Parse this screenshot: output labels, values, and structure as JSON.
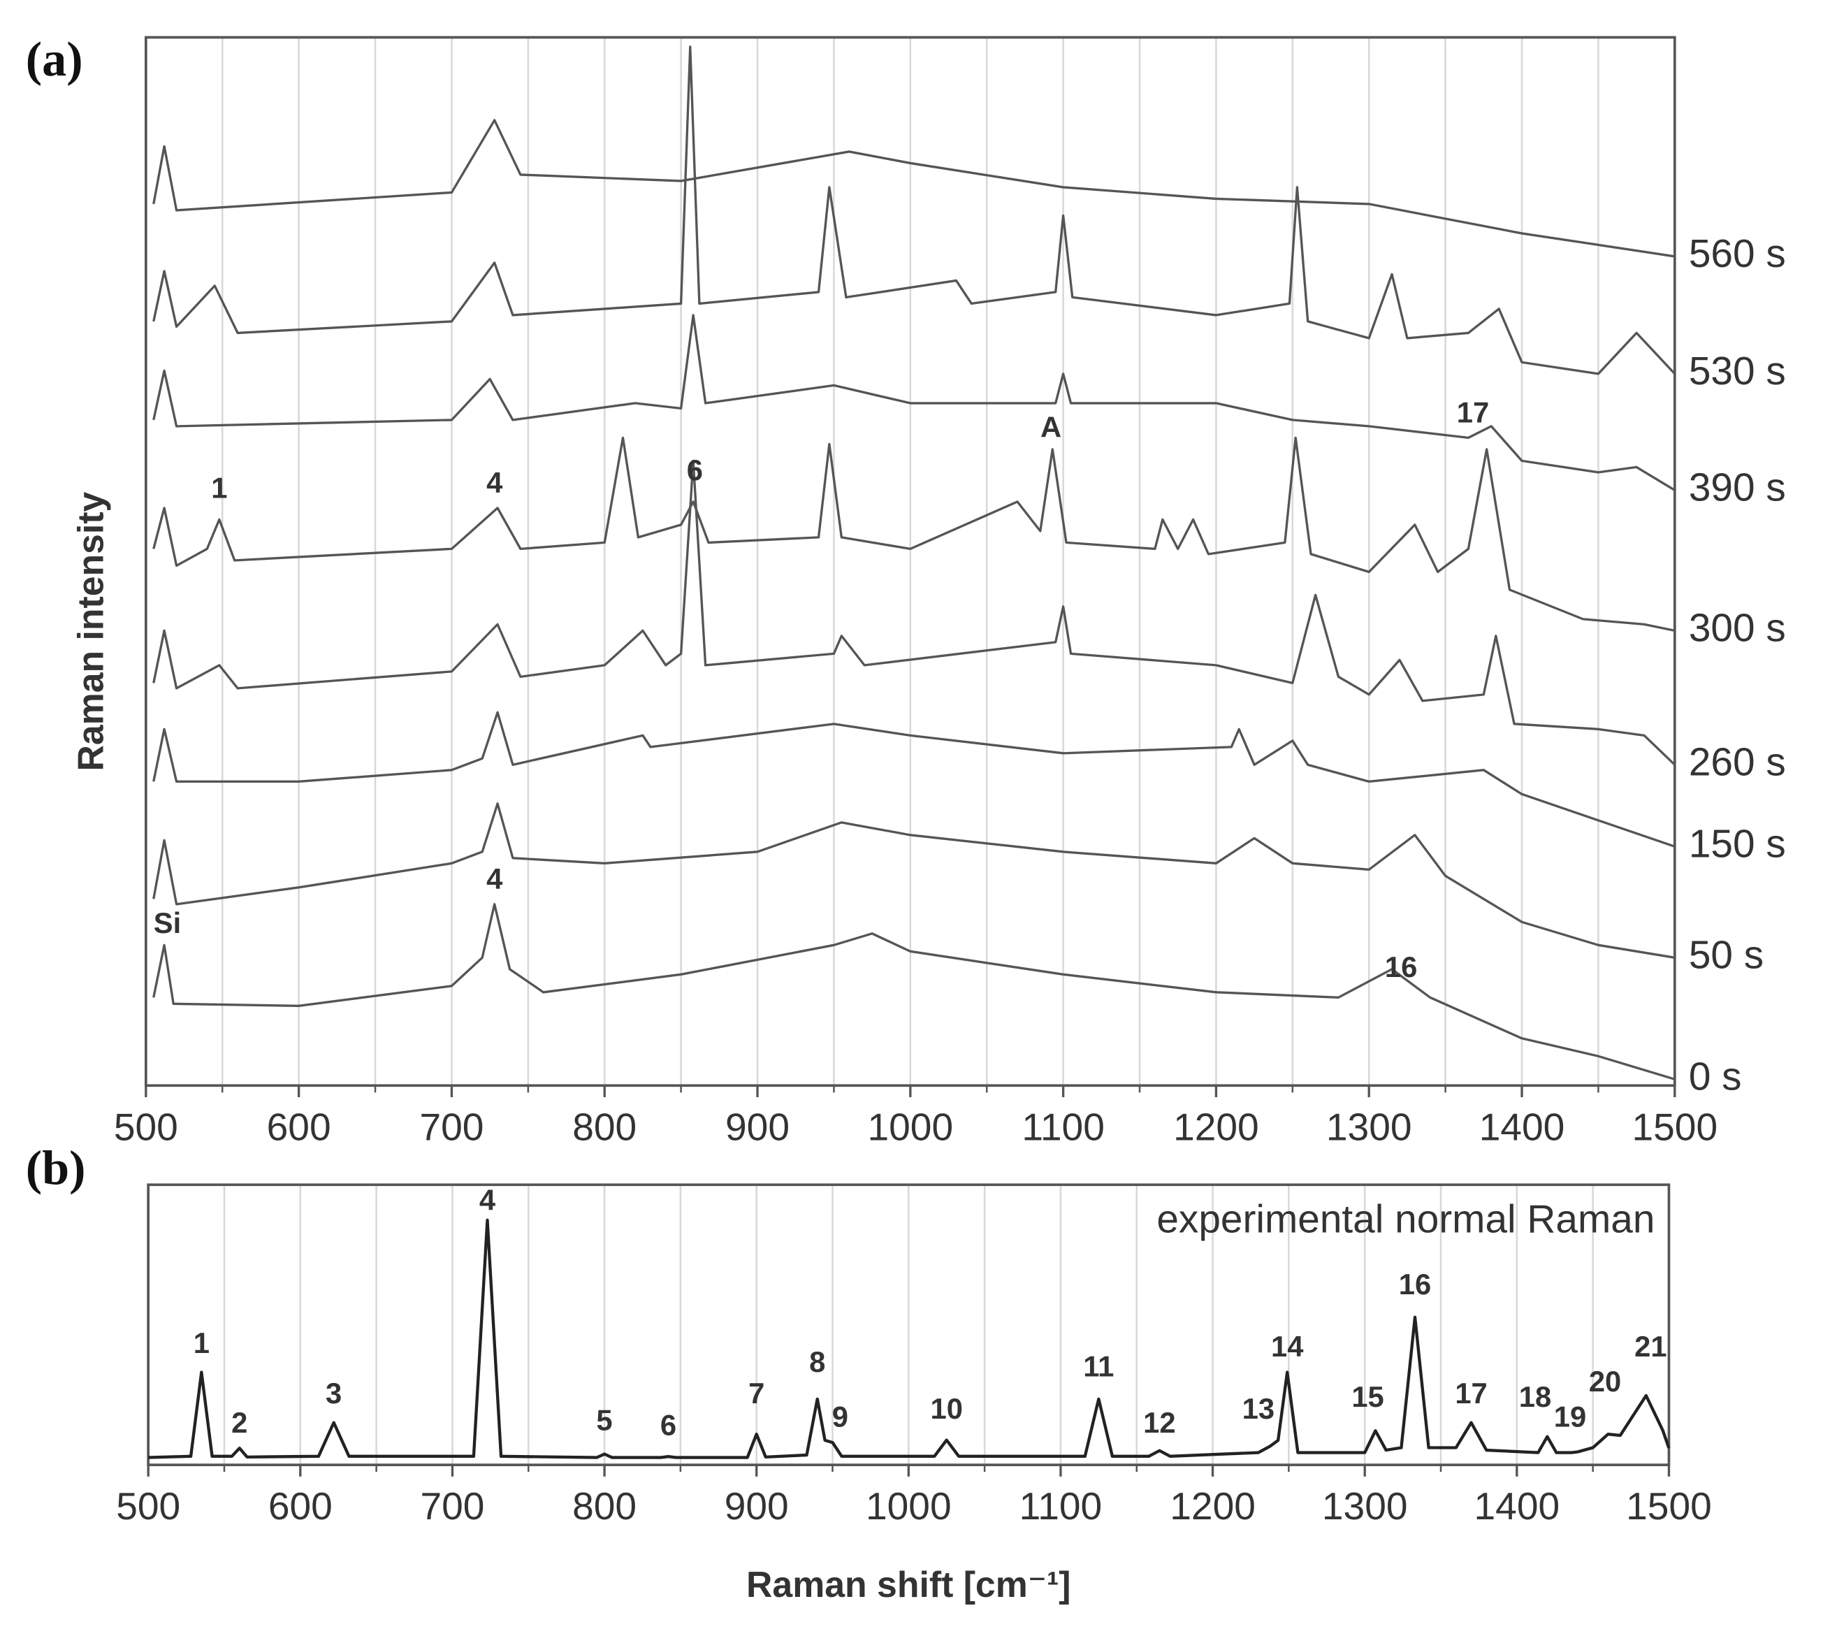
{
  "chart_data": [
    {
      "type": "line",
      "panel_label": "(a)",
      "ylabel": "Raman intensity",
      "legend": "line-end",
      "xlim": [
        500,
        1500
      ],
      "ylim": [
        0,
        100
      ],
      "xticks": [
        500,
        600,
        700,
        800,
        900,
        1000,
        1100,
        1200,
        1300,
        1400,
        1500
      ],
      "minor_xticks": [
        550,
        650,
        750,
        850,
        950,
        1050,
        1150,
        1250,
        1350,
        1450
      ],
      "grid": true,
      "series": [
        {
          "name": "560 s",
          "color": "#555555",
          "x": [
            505,
            512,
            520,
            700,
            728,
            745,
            850,
            960,
            1000,
            1100,
            1200,
            1300,
            1400,
            1500
          ],
          "values": [
            84.1,
            89.6,
            83.5,
            85.2,
            92.1,
            86.9,
            86.3,
            89.1,
            88.0,
            85.7,
            84.6,
            84.1,
            81.3,
            79.1
          ]
        },
        {
          "name": "530 s",
          "color": "#555555",
          "x": [
            505,
            512,
            520,
            545,
            560,
            700,
            728,
            740,
            800,
            850,
            856,
            862,
            940,
            947,
            958,
            1030,
            1040,
            1095,
            1100,
            1106,
            1200,
            1248,
            1253,
            1260,
            1300,
            1315,
            1325,
            1365,
            1385,
            1400,
            1450,
            1475,
            1500
          ],
          "values": [
            72.9,
            77.7,
            72.4,
            76.3,
            71.8,
            72.9,
            78.5,
            73.5,
            74.1,
            74.6,
            99.1,
            74.6,
            75.7,
            85.7,
            75.2,
            76.8,
            74.6,
            75.7,
            83.0,
            75.2,
            73.5,
            74.6,
            85.7,
            72.9,
            71.3,
            77.4,
            71.3,
            71.8,
            74.1,
            69.0,
            67.9,
            71.8,
            67.9
          ]
        },
        {
          "name": "390 s",
          "color": "#555555",
          "x": [
            505,
            512,
            520,
            700,
            725,
            740,
            820,
            850,
            858,
            866,
            950,
            1000,
            1095,
            1100,
            1105,
            1200,
            1250,
            1300,
            1365,
            1380,
            1400,
            1450,
            1475,
            1500
          ],
          "values": [
            63.5,
            68.2,
            62.9,
            63.5,
            67.4,
            63.5,
            65.1,
            64.6,
            73.5,
            65.1,
            66.8,
            65.1,
            65.1,
            67.9,
            65.1,
            65.1,
            63.5,
            62.9,
            61.8,
            62.9,
            59.6,
            58.5,
            59.0,
            56.8
          ]
        },
        {
          "name": "300 s",
          "color": "#555555",
          "x": [
            505,
            512,
            520,
            540,
            548,
            558,
            700,
            730,
            745,
            800,
            812,
            822,
            850,
            858,
            868,
            940,
            947,
            955,
            1000,
            1070,
            1085,
            1093,
            1102,
            1160,
            1165,
            1175,
            1185,
            1195,
            1245,
            1252,
            1262,
            1300,
            1330,
            1345,
            1365,
            1377,
            1392,
            1440,
            1480,
            1500
          ],
          "values": [
            51.2,
            55.1,
            49.6,
            51.2,
            54.0,
            50.1,
            51.2,
            55.1,
            51.2,
            51.8,
            61.8,
            52.3,
            53.5,
            55.7,
            51.8,
            52.3,
            61.2,
            52.3,
            51.2,
            55.7,
            52.9,
            60.7,
            51.8,
            51.2,
            54.0,
            51.2,
            54.0,
            50.7,
            51.8,
            61.8,
            50.7,
            49.0,
            53.5,
            49.0,
            51.2,
            60.7,
            47.3,
            44.5,
            44.0,
            43.4
          ]
        },
        {
          "name": "260 s",
          "color": "#555555",
          "x": [
            505,
            512,
            520,
            548,
            560,
            700,
            730,
            745,
            800,
            825,
            840,
            850,
            858,
            866,
            950,
            955,
            970,
            1095,
            1100,
            1105,
            1200,
            1250,
            1265,
            1280,
            1300,
            1320,
            1335,
            1375,
            1383,
            1395,
            1450,
            1480,
            1500
          ],
          "values": [
            38.4,
            43.4,
            37.9,
            40.1,
            37.9,
            39.5,
            44.0,
            39.0,
            40.1,
            43.4,
            40.1,
            41.2,
            59.6,
            40.1,
            41.2,
            42.9,
            40.1,
            42.3,
            45.7,
            41.2,
            40.1,
            38.4,
            46.8,
            39.0,
            37.3,
            40.6,
            36.7,
            37.3,
            42.9,
            34.5,
            34.0,
            33.4,
            30.6
          ]
        },
        {
          "name": "150 s",
          "color": "#555555",
          "x": [
            505,
            512,
            520,
            600,
            700,
            720,
            730,
            740,
            825,
            830,
            950,
            1000,
            1100,
            1210,
            1215,
            1225,
            1250,
            1260,
            1300,
            1375,
            1400,
            1500
          ],
          "values": [
            29.0,
            34.0,
            29.0,
            29.0,
            30.1,
            31.2,
            35.6,
            30.6,
            33.4,
            32.3,
            34.5,
            33.4,
            31.7,
            32.3,
            34.0,
            30.6,
            32.9,
            30.6,
            29.0,
            30.1,
            27.8,
            22.8
          ]
        },
        {
          "name": "50 s",
          "color": "#555555",
          "x": [
            505,
            512,
            520,
            600,
            700,
            720,
            730,
            740,
            800,
            900,
            955,
            1000,
            1100,
            1200,
            1225,
            1250,
            1300,
            1330,
            1350,
            1400,
            1450,
            1500
          ],
          "values": [
            17.8,
            23.4,
            17.3,
            18.9,
            21.2,
            22.3,
            26.9,
            21.7,
            21.2,
            22.3,
            25.1,
            23.9,
            22.3,
            21.2,
            23.6,
            21.2,
            20.6,
            23.9,
            20.0,
            15.6,
            13.4,
            12.2
          ]
        },
        {
          "name": "0 s",
          "color": "#555555",
          "x": [
            505,
            512,
            518,
            600,
            700,
            720,
            728,
            738,
            760,
            850,
            950,
            975,
            1000,
            1100,
            1200,
            1280,
            1315,
            1340,
            1400,
            1450,
            1500
          ],
          "values": [
            8.4,
            13.4,
            7.8,
            7.6,
            9.5,
            12.2,
            17.3,
            11.1,
            8.9,
            10.6,
            13.4,
            14.5,
            12.8,
            10.6,
            8.9,
            8.4,
            11.1,
            8.4,
            4.5,
            2.8,
            0.6
          ]
        }
      ],
      "annotations": [
        {
          "text": "1",
          "x": 548,
          "y": 56.8
        },
        {
          "text": "4",
          "x": 728,
          "y": 57.3
        },
        {
          "text": "6",
          "x": 859,
          "y": 58.5
        },
        {
          "text": "A",
          "x": 1092,
          "y": 62.6
        },
        {
          "text": "17",
          "x": 1368,
          "y": 64.0
        },
        {
          "text": "Si",
          "x": 514,
          "y": 15.3
        },
        {
          "text": "4",
          "x": 728,
          "y": 19.5
        },
        {
          "text": "16",
          "x": 1321,
          "y": 11.1
        }
      ]
    },
    {
      "type": "line",
      "panel_label": "(b)",
      "xlabel": "Raman shift [cm⁻¹]",
      "legend": "upper right",
      "xlim": [
        500,
        1500
      ],
      "ylim": [
        -2,
        112
      ],
      "xticks": [
        500,
        600,
        700,
        800,
        900,
        1000,
        1100,
        1200,
        1300,
        1400,
        1500
      ],
      "minor_xticks": [
        550,
        650,
        750,
        850,
        950,
        1050,
        1150,
        1250,
        1350,
        1450
      ],
      "grid": true,
      "series": [
        {
          "name": "experimental normal Raman",
          "color": "#222222",
          "x": [
            500,
            528,
            535,
            542,
            555,
            560,
            565,
            612,
            622,
            632,
            714,
            723,
            732,
            795,
            800,
            805,
            837,
            842,
            847,
            894,
            900,
            906,
            933,
            940,
            945,
            950,
            956,
            1017,
            1025,
            1033,
            1116,
            1125,
            1134,
            1158,
            1165,
            1172,
            1230,
            1238,
            1243,
            1249,
            1256,
            1300,
            1307,
            1314,
            1324,
            1333,
            1342,
            1360,
            1370,
            1380,
            1414,
            1420,
            1426,
            1436,
            1440,
            1450,
            1460,
            1468,
            1485,
            1496,
            1500
          ],
          "values": [
            1,
            1.5,
            35.7,
            1.5,
            1.5,
            4.8,
            1.2,
            1.5,
            15.2,
            1.5,
            1.5,
            97.6,
            1.5,
            1,
            2.4,
            1,
            1,
            1.4,
            1,
            1,
            10.5,
            1.2,
            2,
            24.8,
            8,
            7.1,
            1.5,
            1.5,
            8.1,
            1.5,
            1.5,
            24.8,
            1.5,
            1.5,
            3.8,
            1.5,
            3,
            5.7,
            8,
            35.7,
            3,
            3,
            11.9,
            4,
            5,
            58.1,
            5,
            5,
            15.2,
            4,
            3,
            9.5,
            3,
            3,
            3.3,
            5,
            10.5,
            10,
            26.2,
            12,
            4.8
          ]
        }
      ],
      "annotations": [
        {
          "text": "1",
          "x": 535,
          "y": 46.7
        },
        {
          "text": "2",
          "x": 560,
          "y": 14.3
        },
        {
          "text": "3",
          "x": 622,
          "y": 26.2
        },
        {
          "text": "4",
          "x": 723,
          "y": 104.8
        },
        {
          "text": "5",
          "x": 800,
          "y": 15.2
        },
        {
          "text": "6",
          "x": 842,
          "y": 13.3
        },
        {
          "text": "7",
          "x": 900,
          "y": 26.2
        },
        {
          "text": "8",
          "x": 940,
          "y": 39.0
        },
        {
          "text": "9",
          "x": 955,
          "y": 16.7
        },
        {
          "text": "10",
          "x": 1025,
          "y": 20.0
        },
        {
          "text": "11",
          "x": 1125,
          "y": 37.1
        },
        {
          "text": "12",
          "x": 1165,
          "y": 14.3
        },
        {
          "text": "13",
          "x": 1230,
          "y": 20.0
        },
        {
          "text": "14",
          "x": 1249,
          "y": 45.2
        },
        {
          "text": "15",
          "x": 1302,
          "y": 24.8
        },
        {
          "text": "16",
          "x": 1333,
          "y": 70.5
        },
        {
          "text": "17",
          "x": 1370,
          "y": 26.2
        },
        {
          "text": "18",
          "x": 1412,
          "y": 24.8
        },
        {
          "text": "19",
          "x": 1435,
          "y": 16.7
        },
        {
          "text": "20",
          "x": 1458,
          "y": 31.0
        },
        {
          "text": "21",
          "x": 1488,
          "y": 45.2
        }
      ]
    }
  ]
}
